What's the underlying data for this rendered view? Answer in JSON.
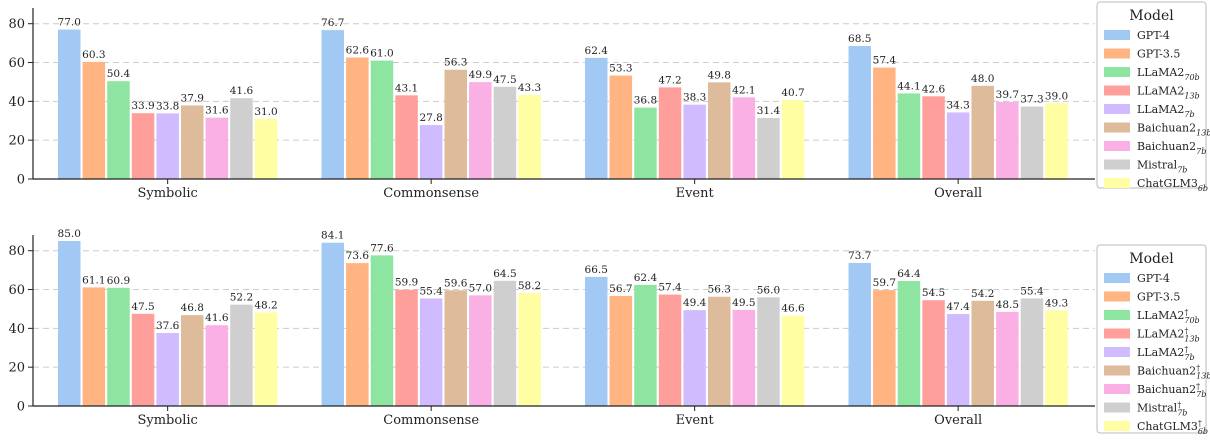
{
  "chart_data": [
    {
      "type": "bar",
      "categories": [
        "Symbolic",
        "Commonsense",
        "Event",
        "Overall"
      ],
      "ylim": [
        0,
        85
      ],
      "yticks": [
        0,
        20,
        40,
        60,
        80
      ],
      "grid": true,
      "legend_placement": "right",
      "legend_title": "Model",
      "series": [
        {
          "name": "GPT-4",
          "base": "GPT-4",
          "sub": "",
          "dagger": false,
          "color": "#a1c9f4",
          "values": [
            77.0,
            76.7,
            62.4,
            68.5
          ]
        },
        {
          "name": "GPT-3.5",
          "base": "GPT-3.5",
          "sub": "",
          "dagger": false,
          "color": "#ffb482",
          "values": [
            60.3,
            62.6,
            53.3,
            57.4
          ]
        },
        {
          "name": "LLaMA2 70b",
          "base": "LLaMA2",
          "sub": "70b",
          "dagger": false,
          "color": "#8de5a1",
          "values": [
            50.4,
            61.0,
            36.8,
            44.1
          ]
        },
        {
          "name": "LLaMA2 13b",
          "base": "LLaMA2",
          "sub": "13b",
          "dagger": false,
          "color": "#ff9f9b",
          "values": [
            33.9,
            43.1,
            47.2,
            42.6
          ]
        },
        {
          "name": "LLaMA2 7b",
          "base": "LLaMA2",
          "sub": "7b",
          "dagger": false,
          "color": "#d0bbff",
          "values": [
            33.8,
            27.8,
            38.3,
            34.3
          ]
        },
        {
          "name": "Baichuan2 13b",
          "base": "Baichuan2",
          "sub": "13b",
          "dagger": false,
          "color": "#debb9b",
          "values": [
            37.9,
            56.3,
            49.8,
            48.0
          ]
        },
        {
          "name": "Baichuan2 7b",
          "base": "Baichuan2",
          "sub": "7b",
          "dagger": false,
          "color": "#fab0e4",
          "values": [
            31.6,
            49.9,
            42.1,
            39.7
          ]
        },
        {
          "name": "Mistral 7b",
          "base": "Mistral",
          "sub": "7b",
          "dagger": false,
          "color": "#cfcfcf",
          "values": [
            41.6,
            47.5,
            31.4,
            37.3
          ]
        },
        {
          "name": "ChatGLM3 6b",
          "base": "ChatGLM3",
          "sub": "6b",
          "dagger": false,
          "color": "#fffea3",
          "values": [
            31.0,
            43.3,
            40.7,
            39.0
          ]
        }
      ]
    },
    {
      "type": "bar",
      "categories": [
        "Symbolic",
        "Commonsense",
        "Event",
        "Overall"
      ],
      "ylim": [
        0,
        85
      ],
      "yticks": [
        0,
        20,
        40,
        60,
        80
      ],
      "grid": true,
      "legend_placement": "right",
      "legend_title": "Model",
      "series": [
        {
          "name": "GPT-4",
          "base": "GPT-4",
          "sub": "",
          "dagger": false,
          "color": "#a1c9f4",
          "values": [
            85.0,
            84.1,
            66.5,
            73.7
          ]
        },
        {
          "name": "GPT-3.5",
          "base": "GPT-3.5",
          "sub": "",
          "dagger": false,
          "color": "#ffb482",
          "values": [
            61.1,
            73.6,
            56.7,
            59.7
          ]
        },
        {
          "name": "LLaMA2† 70b",
          "base": "LLaMA2",
          "sub": "70b",
          "dagger": true,
          "color": "#8de5a1",
          "values": [
            60.9,
            77.6,
            62.4,
            64.4
          ]
        },
        {
          "name": "LLaMA2† 13b",
          "base": "LLaMA2",
          "sub": "13b",
          "dagger": true,
          "color": "#ff9f9b",
          "values": [
            47.5,
            59.9,
            57.4,
            54.5
          ]
        },
        {
          "name": "LLaMA2† 7b",
          "base": "LLaMA2",
          "sub": "7b",
          "dagger": true,
          "color": "#d0bbff",
          "values": [
            37.6,
            55.4,
            49.4,
            47.4
          ]
        },
        {
          "name": "Baichuan2† 13b",
          "base": "Baichuan2",
          "sub": "13b",
          "dagger": true,
          "color": "#debb9b",
          "values": [
            46.8,
            59.6,
            56.3,
            54.2
          ]
        },
        {
          "name": "Baichuan2† 7b",
          "base": "Baichuan2",
          "sub": "7b",
          "dagger": true,
          "color": "#fab0e4",
          "values": [
            41.6,
            57.0,
            49.5,
            48.5
          ]
        },
        {
          "name": "Mistral† 7b",
          "base": "Mistral",
          "sub": "7b",
          "dagger": true,
          "color": "#cfcfcf",
          "values": [
            52.2,
            64.5,
            56.0,
            55.4
          ]
        },
        {
          "name": "ChatGLM3† 6b",
          "base": "ChatGLM3",
          "sub": "6b",
          "dagger": true,
          "color": "#fffea3",
          "values": [
            48.2,
            58.2,
            46.6,
            49.3
          ]
        }
      ]
    }
  ]
}
